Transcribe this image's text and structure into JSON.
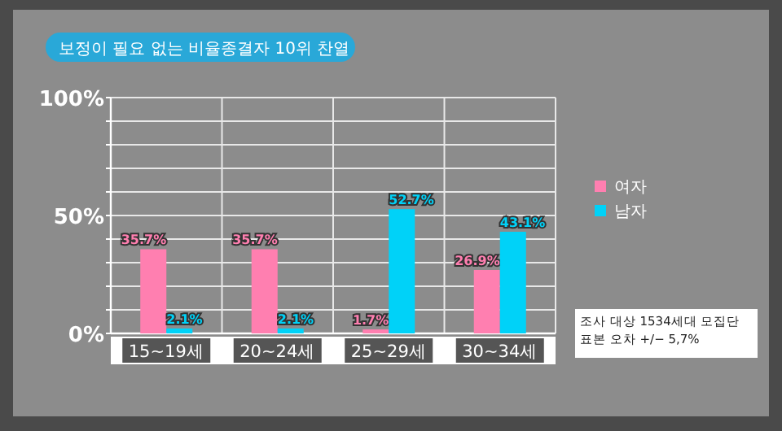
{
  "chart_data": {
    "type": "bar",
    "title": "보정이 필요 없는 비율종결자 10위 찬열",
    "categories": [
      "15~19세",
      "20~24세",
      "25~29세",
      "30~34세"
    ],
    "series": [
      {
        "name": "여자",
        "color": "#ff7fb0",
        "values": [
          35.7,
          35.7,
          1.7,
          26.9
        ],
        "value_labels": [
          "35.7%",
          "35.7%",
          "1.7%",
          "26.9%"
        ]
      },
      {
        "name": "남자",
        "color": "#00d2f8",
        "values": [
          2.1,
          2.1,
          52.7,
          43.1
        ],
        "value_labels": [
          "2.1%",
          "2.1%",
          "52.7%",
          "43.1%"
        ]
      }
    ],
    "ylim": [
      0,
      100
    ],
    "yticks": [
      {
        "value": 0,
        "label": "0%"
      },
      {
        "value": 10,
        "label": null
      },
      {
        "value": 20,
        "label": null
      },
      {
        "value": 30,
        "label": null
      },
      {
        "value": 40,
        "label": null
      },
      {
        "value": 50,
        "label": "50%"
      },
      {
        "value": 60,
        "label": null
      },
      {
        "value": 70,
        "label": null
      },
      {
        "value": 80,
        "label": null
      },
      {
        "value": 90,
        "label": null
      },
      {
        "value": 100,
        "label": "100%"
      }
    ],
    "grid": true,
    "legend": "right",
    "annotations": [
      "조사 대상 1534세대 모집단",
      "표본 오차 +/− 5,7%"
    ]
  }
}
